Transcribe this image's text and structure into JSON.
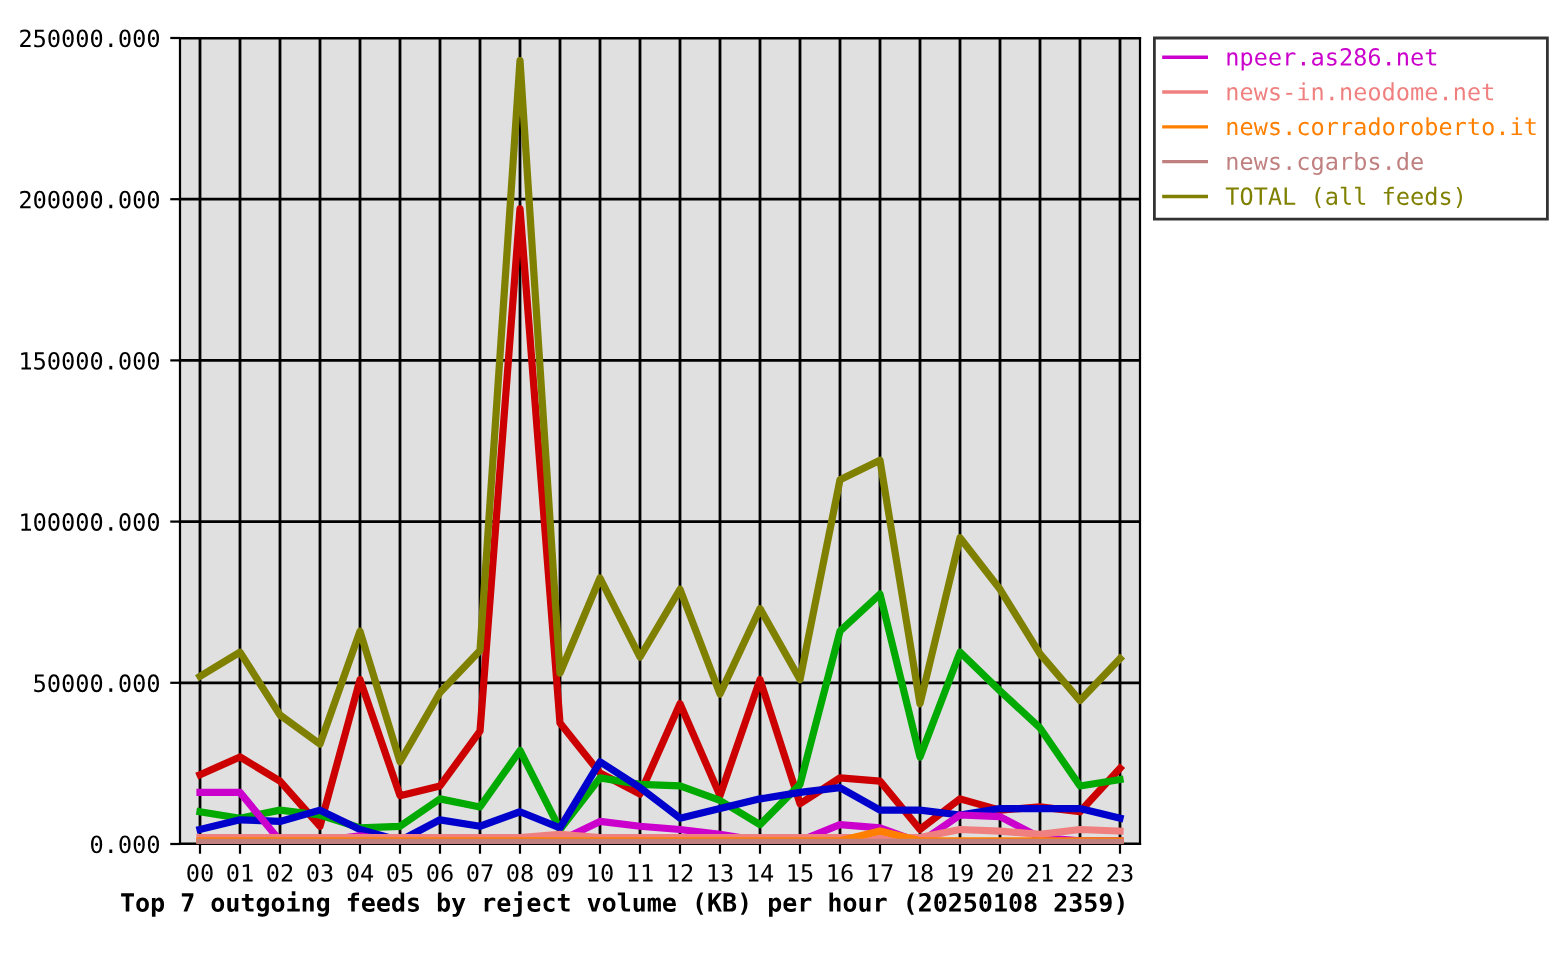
{
  "chart_data": {
    "type": "line",
    "title": "Top 7 outgoing feeds by reject volume (KB) per hour (20250108 2359)",
    "categories": [
      "00",
      "01",
      "02",
      "03",
      "04",
      "05",
      "06",
      "07",
      "08",
      "09",
      "10",
      "11",
      "12",
      "13",
      "14",
      "15",
      "16",
      "17",
      "18",
      "19",
      "20",
      "21",
      "22",
      "23"
    ],
    "series": [
      {
        "color": "#cc0000",
        "values": [
          21500,
          27000,
          19500,
          5500,
          51000,
          15000,
          18000,
          35000,
          197000,
          37500,
          22000,
          15500,
          43500,
          15000,
          51000,
          12500,
          20500,
          19500,
          4500,
          14000,
          10500,
          11500,
          10000,
          23500
        ]
      },
      {
        "color": "#00aa00",
        "values": [
          10000,
          8000,
          10500,
          9000,
          5000,
          5500,
          14000,
          11500,
          29000,
          4500,
          20500,
          18500,
          18000,
          13500,
          6000,
          18500,
          66000,
          77500,
          27000,
          59500,
          47500,
          36000,
          18000,
          20000
        ]
      },
      {
        "color": "#0000cc",
        "values": [
          4500,
          7500,
          7000,
          10500,
          4500,
          1000,
          7500,
          5500,
          10000,
          5000,
          25500,
          17500,
          8000,
          11000,
          14000,
          16000,
          17500,
          10500,
          10500,
          9000,
          11000,
          11000,
          11000,
          8000
        ]
      },
      {
        "name": "npeer.as286.net",
        "color": "#cc00cc",
        "values": [
          16000,
          16000,
          1000,
          1000,
          2500,
          500,
          500,
          500,
          500,
          1000,
          7000,
          5500,
          4500,
          3000,
          1000,
          1000,
          6000,
          5000,
          500,
          9000,
          8500,
          2000,
          1000,
          1000
        ]
      },
      {
        "name": "news-in.neodome.net",
        "color": "#f08080",
        "values": [
          2000,
          2000,
          2000,
          2000,
          2000,
          2000,
          2000,
          2000,
          2000,
          3000,
          2000,
          2000,
          2000,
          2000,
          2000,
          2000,
          2000,
          2000,
          2000,
          4500,
          4000,
          3000,
          4500,
          4000
        ]
      },
      {
        "name": "news.corradoroberto.it",
        "color": "#ff8000",
        "values": [
          1000,
          1000,
          1000,
          1000,
          1000,
          1000,
          1000,
          1000,
          1000,
          1000,
          1000,
          1000,
          1000,
          1000,
          1000,
          1000,
          1000,
          4000,
          1000,
          1000,
          1000,
          1000,
          1000,
          1000
        ]
      },
      {
        "name": "news.cgarbs.de",
        "color": "#c08080",
        "values": [
          500,
          500,
          500,
          500,
          500,
          500,
          500,
          500,
          500,
          500,
          500,
          500,
          500,
          500,
          500,
          500,
          500,
          500,
          500,
          500,
          500,
          500,
          500,
          500
        ]
      },
      {
        "name": "TOTAL (all feeds)",
        "color": "#808000",
        "values": [
          52000,
          59500,
          40000,
          31000,
          66000,
          25500,
          47000,
          60000,
          243000,
          53000,
          82500,
          58000,
          79000,
          46500,
          73000,
          51000,
          113000,
          119000,
          43500,
          95000,
          79000,
          59000,
          44500,
          57500
        ]
      }
    ],
    "ylim": [
      0,
      250000
    ],
    "yticks": [
      {
        "value": 0,
        "label": "0.000"
      },
      {
        "value": 50000,
        "label": "50000.000"
      },
      {
        "value": 100000,
        "label": "100000.000"
      },
      {
        "value": 150000,
        "label": "150000.000"
      },
      {
        "value": 200000,
        "label": "200000.000"
      },
      {
        "value": 250000,
        "label": "250000.000"
      }
    ],
    "grid": true,
    "legend": "right",
    "line_style": "solid"
  }
}
